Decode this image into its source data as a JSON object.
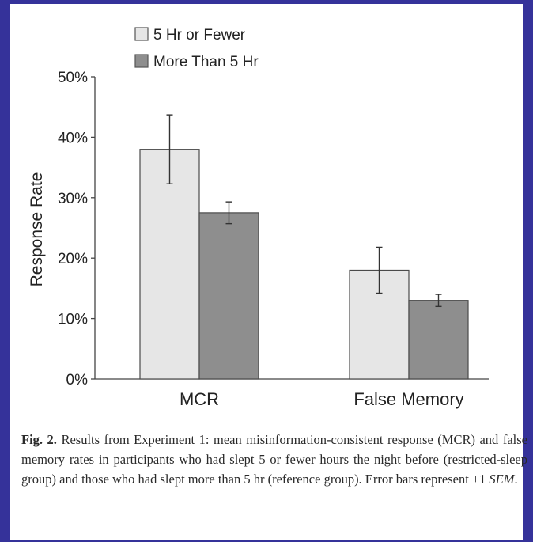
{
  "chart_data": {
    "type": "bar",
    "categories": [
      "MCR",
      "False Memory"
    ],
    "series": [
      {
        "name": "5 Hr or Fewer",
        "values": [
          38,
          18
        ],
        "error": [
          5.7,
          3.8
        ],
        "color": "#e6e6e6"
      },
      {
        "name": "More Than 5 Hr",
        "values": [
          27.5,
          13
        ],
        "error": [
          1.8,
          1.0
        ],
        "color": "#8e8e8e"
      }
    ],
    "ylabel": "Response Rate",
    "ylim": [
      0,
      50
    ],
    "yticks": [
      "0%",
      "10%",
      "20%",
      "30%",
      "40%",
      "50%"
    ],
    "grid": false,
    "legend": "top-left"
  },
  "caption": {
    "label": "Fig. 2.",
    "body": " Results from Experiment 1: mean misinformation-consistent response (MCR) and false memory rates in participants who had slept 5 or fewer hours the night before (restricted-sleep group) and those who had slept more than 5 hr (reference group). Error bars represent ±1 ",
    "sem": "SEM",
    "end": "."
  },
  "colors": {
    "frame": "#35329a",
    "bar_light": "#e6e6e6",
    "bar_dark": "#8e8e8e"
  }
}
